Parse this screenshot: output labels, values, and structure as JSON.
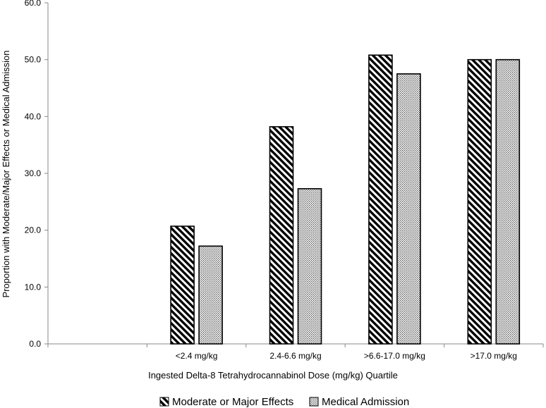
{
  "chart_data": {
    "type": "bar",
    "categories": [
      "<2.4 mg/kg",
      "2.4-6.6 mg/kg",
      ">6.6-17.0 mg/kg",
      ">17.0 mg/kg"
    ],
    "series": [
      {
        "name": "Moderate or Major Effects",
        "values": [
          20.7,
          38.2,
          50.8,
          50.0
        ],
        "pattern": "diagonal-hatch"
      },
      {
        "name": "Medical Admission",
        "values": [
          17.2,
          27.3,
          47.5,
          50.0
        ],
        "pattern": "dots"
      }
    ],
    "xlabel": "Ingested Delta-8 Tetrahydrocannabinol Dose (mg/kg) Quartile",
    "ylabel": "Proportion with Moderate/Major Effects or Medical Admission",
    "ylim": [
      0,
      60
    ],
    "yticks": [
      "0.0",
      "10.0",
      "20.0",
      "30.0",
      "40.0",
      "50.0",
      "60.0"
    ],
    "grid": false,
    "legend": "bottom-center"
  },
  "colors": {
    "bar_outline": "#000000",
    "bar_fill": "#ffffff",
    "axis": "#888888"
  }
}
